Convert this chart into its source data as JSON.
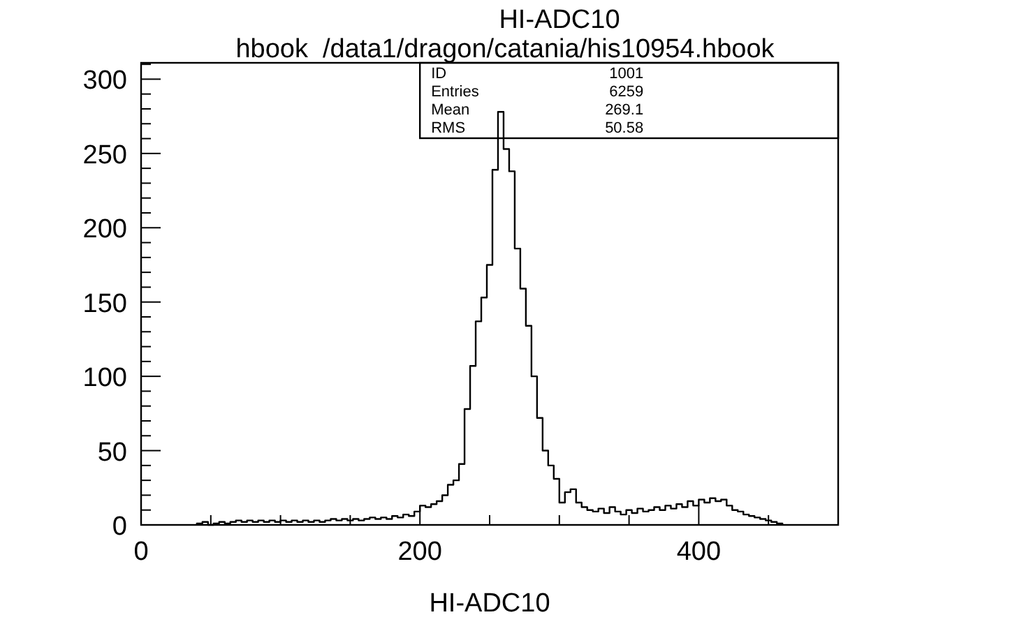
{
  "chart_data": {
    "type": "histogram",
    "title": "HI-ADC10",
    "subtitle": "hbook  /data1/dragon/catania/his10954.hbook",
    "xlabel": "HI-ADC10",
    "bins": [
      40,
      44,
      48,
      52,
      56,
      60,
      64,
      68,
      72,
      76,
      80,
      84,
      88,
      92,
      96,
      100,
      104,
      108,
      112,
      116,
      120,
      124,
      128,
      132,
      136,
      140,
      144,
      148,
      152,
      156,
      160,
      164,
      168,
      172,
      176,
      180,
      184,
      188,
      192,
      196,
      200,
      204,
      208,
      212,
      216,
      220,
      224,
      228,
      232,
      236,
      240,
      244,
      248,
      252,
      256,
      260,
      264,
      268,
      272,
      276,
      280,
      284,
      288,
      292,
      296,
      300,
      304,
      308,
      312,
      316,
      320,
      324,
      328,
      332,
      336,
      340,
      344,
      348,
      352,
      356,
      360,
      364,
      368,
      372,
      376,
      380,
      384,
      388,
      392,
      396,
      400,
      404,
      408,
      412,
      416,
      420,
      424,
      428,
      432,
      436,
      440,
      444,
      448,
      452,
      456,
      460
    ],
    "values": [
      1,
      2,
      0,
      1,
      2,
      1,
      2,
      3,
      2,
      3,
      2,
      3,
      2,
      3,
      2,
      3,
      2,
      3,
      2,
      3,
      2,
      3,
      2,
      3,
      4,
      3,
      4,
      3,
      4,
      3,
      4,
      5,
      4,
      5,
      4,
      6,
      5,
      7,
      6,
      9,
      13,
      12,
      14,
      16,
      20,
      27,
      30,
      41,
      78,
      107,
      137,
      153,
      175,
      239,
      278,
      253,
      238,
      186,
      159,
      134,
      100,
      72,
      50,
      40,
      31,
      15,
      22,
      24,
      15,
      12,
      10,
      9,
      11,
      8,
      12,
      9,
      7,
      10,
      8,
      11,
      9,
      10,
      12,
      10,
      13,
      11,
      14,
      12,
      16,
      13,
      17,
      15,
      18,
      16,
      17,
      13,
      10,
      9,
      7,
      6,
      5,
      4,
      3,
      2,
      1
    ],
    "color": "#000000",
    "xlim": [
      0,
      500
    ],
    "xticks": [
      0,
      {
        "value": 50,
        "label": null
      },
      {
        "value": 100,
        "label": null
      },
      {
        "value": 150,
        "label": null
      },
      200,
      {
        "value": 250,
        "label": null
      },
      {
        "value": 300,
        "label": null
      },
      {
        "value": 350,
        "label": null
      },
      400,
      {
        "value": 450,
        "label": null
      }
    ],
    "ylim": [
      0,
      311
    ],
    "yticks": [
      0,
      {
        "value": 10,
        "label": null
      },
      {
        "value": 20,
        "label": null
      },
      {
        "value": 30,
        "label": null
      },
      {
        "value": 40,
        "label": null
      },
      50,
      {
        "value": 60,
        "label": null
      },
      {
        "value": 70,
        "label": null
      },
      {
        "value": 80,
        "label": null
      },
      {
        "value": 90,
        "label": null
      },
      100,
      {
        "value": 110,
        "label": null
      },
      {
        "value": 120,
        "label": null
      },
      {
        "value": 130,
        "label": null
      },
      {
        "value": 140,
        "label": null
      },
      150,
      {
        "value": 160,
        "label": null
      },
      {
        "value": 170,
        "label": null
      },
      {
        "value": 180,
        "label": null
      },
      {
        "value": 190,
        "label": null
      },
      200,
      {
        "value": 210,
        "label": null
      },
      {
        "value": 220,
        "label": null
      },
      {
        "value": 230,
        "label": null
      },
      {
        "value": 240,
        "label": null
      },
      250,
      {
        "value": 260,
        "label": null
      },
      {
        "value": 270,
        "label": null
      },
      {
        "value": 280,
        "label": null
      },
      {
        "value": 290,
        "label": null
      },
      300,
      {
        "value": 310,
        "label": null
      }
    ],
    "grid": false,
    "annotations": [
      "ID",
      "1001",
      "Entries",
      "6259",
      "Mean",
      "269.1",
      "RMS",
      "50.58"
    ]
  }
}
